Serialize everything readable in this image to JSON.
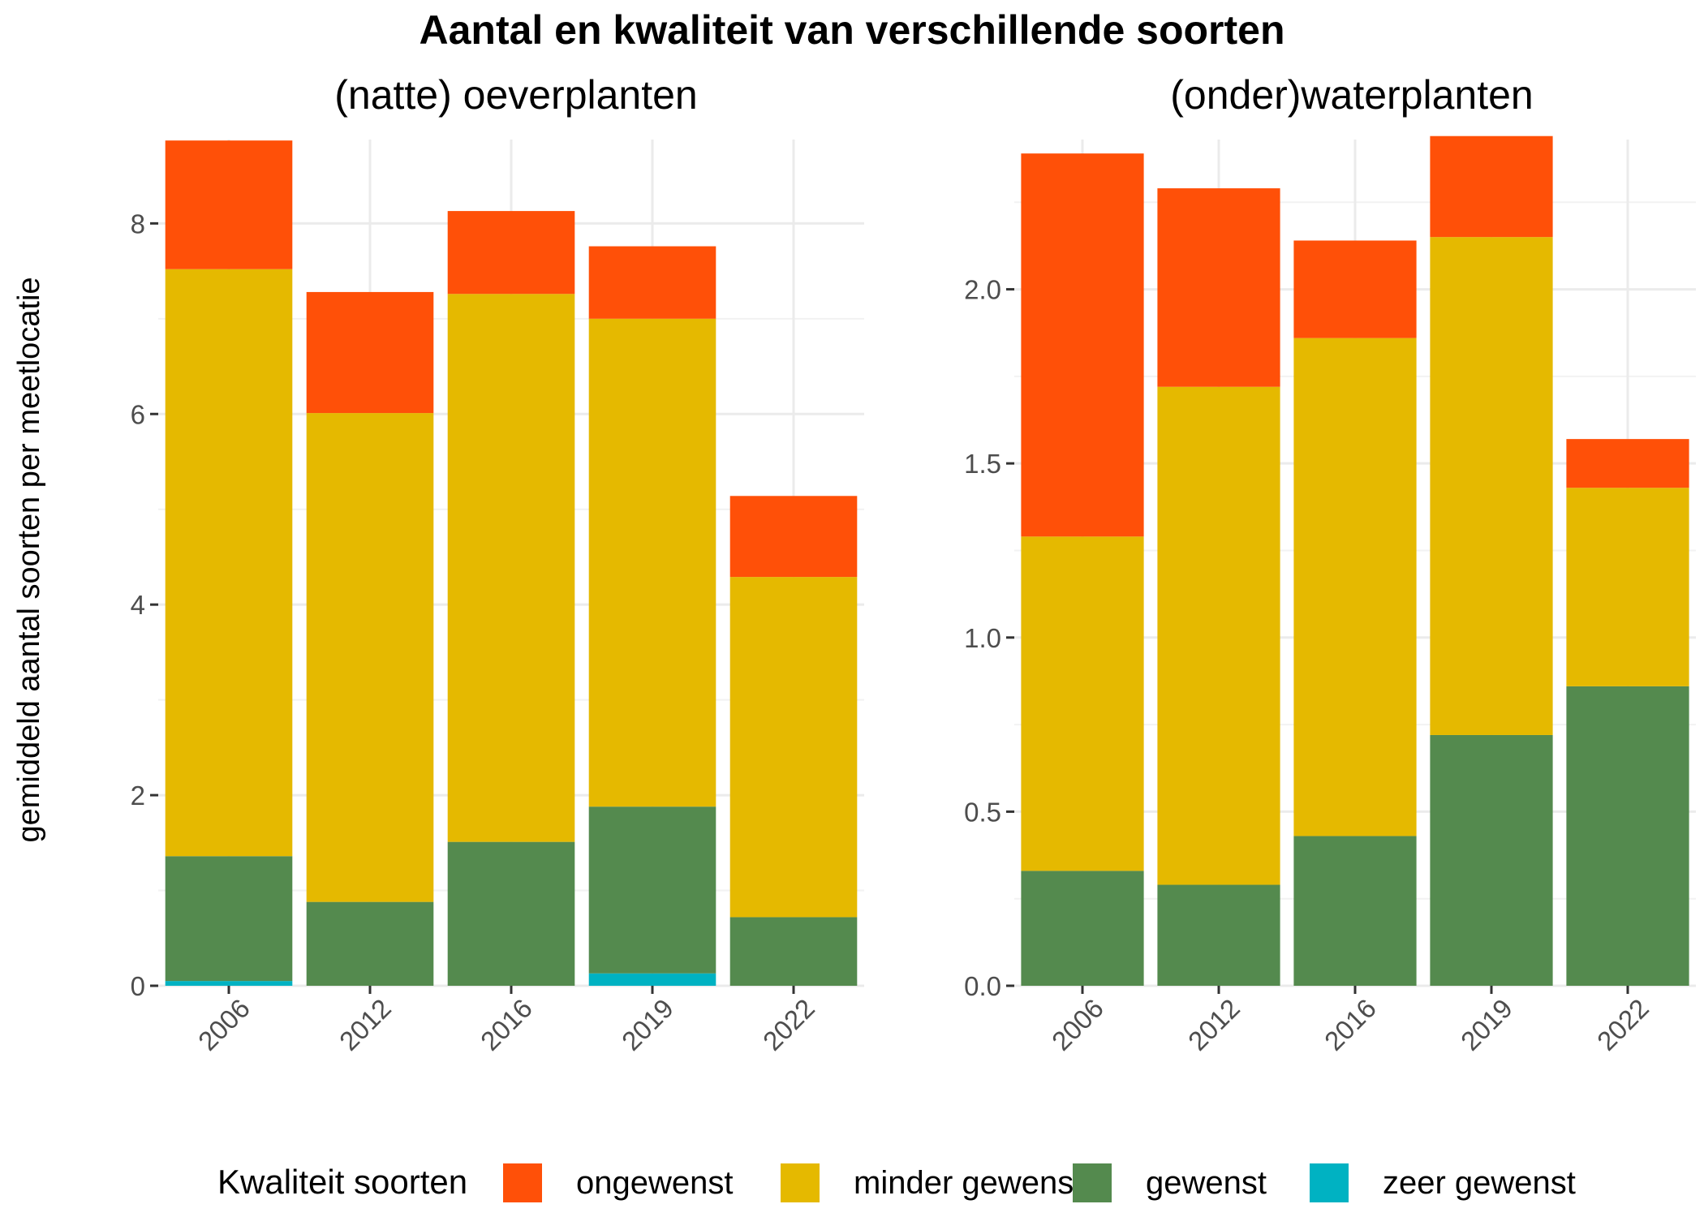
{
  "title": "Aantal en kwaliteit van verschillende soorten",
  "colors": {
    "ongewenst": "#FF5008",
    "minder gewenst": "#E5B900",
    "gewenst": "#548A4E",
    "zeer gewenst": "#00B2C2"
  },
  "legend": {
    "title": "Kwaliteit soorten",
    "items": [
      "ongewenst",
      "minder gewenst",
      "gewenst",
      "zeer gewenst"
    ],
    "position": "bottom"
  },
  "chart_data": [
    {
      "type": "bar",
      "stacked": true,
      "title": "(natte) oeverplanten",
      "xlabel": "",
      "ylabel": "gemiddeld aantal soorten per meetlocatie",
      "categories": [
        "2006",
        "2012",
        "2016",
        "2019",
        "2022"
      ],
      "ylim": [
        0,
        8.88
      ],
      "yticks": [
        0,
        2,
        4,
        6,
        8
      ],
      "ytick_labels": [
        "0",
        "2",
        "4",
        "6",
        "8"
      ],
      "grid": true,
      "series": [
        {
          "name": "zeer gewenst",
          "values": [
            0.05,
            0,
            0,
            0.13,
            0
          ]
        },
        {
          "name": "gewenst",
          "values": [
            1.31,
            0.88,
            1.51,
            1.75,
            0.72
          ]
        },
        {
          "name": "minder gewenst",
          "values": [
            6.16,
            5.13,
            5.75,
            5.12,
            3.57
          ]
        },
        {
          "name": "ongewenst",
          "values": [
            1.35,
            1.27,
            0.87,
            0.76,
            0.85
          ]
        }
      ]
    },
    {
      "type": "bar",
      "stacked": true,
      "title": "(onder)waterplanten",
      "xlabel": "",
      "ylabel": "",
      "categories": [
        "2006",
        "2012",
        "2016",
        "2019",
        "2022"
      ],
      "ylim": [
        0,
        2.43
      ],
      "yticks": [
        0,
        0.5,
        1.0,
        1.5,
        2.0
      ],
      "ytick_labels": [
        "0.0",
        "0.5",
        "1.0",
        "1.5",
        "2.0"
      ],
      "grid": true,
      "series": [
        {
          "name": "zeer gewenst",
          "values": [
            0,
            0,
            0,
            0,
            0
          ]
        },
        {
          "name": "gewenst",
          "values": [
            0.33,
            0.29,
            0.43,
            0.72,
            0.86
          ]
        },
        {
          "name": "minder gewenst",
          "values": [
            0.96,
            1.43,
            1.43,
            1.43,
            0.57
          ]
        },
        {
          "name": "ongewenst",
          "values": [
            1.1,
            0.57,
            0.28,
            0.29,
            0.14
          ]
        }
      ]
    }
  ]
}
